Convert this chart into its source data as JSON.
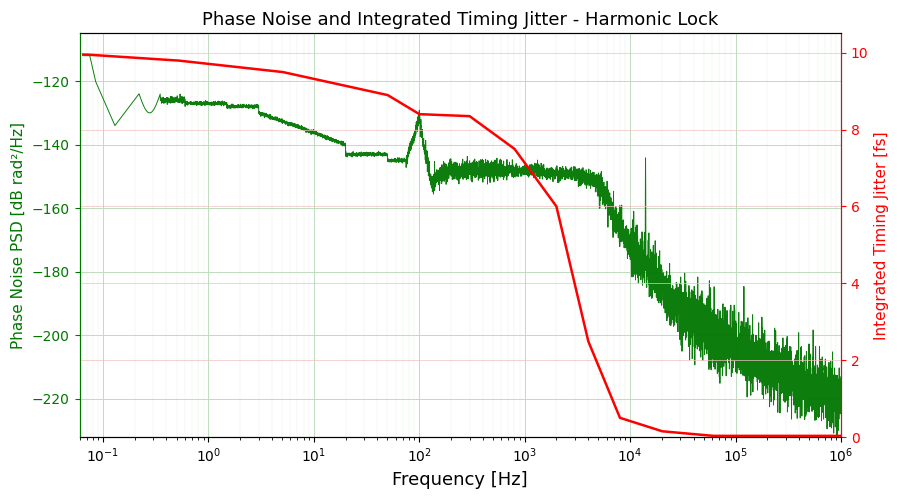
{
  "title": "Phase Noise and Integrated Timing Jitter - Harmonic Lock",
  "xlabel": "Frequency [Hz]",
  "ylabel_left": "Phase Noise PSD [dB rad²/Hz]",
  "ylabel_right": "Integrated Timing Jitter [fs]",
  "xlim": [
    0.06,
    1000000.0
  ],
  "ylim_left": [
    -232,
    -105
  ],
  "ylim_right": [
    0,
    10.5
  ],
  "color_green": "#007700",
  "color_red": "#ff0000",
  "background_color": "#ffffff",
  "yticks_left": [
    -120,
    -140,
    -160,
    -180,
    -200,
    -220
  ],
  "yticks_right": [
    0,
    2,
    4,
    6,
    8,
    10
  ],
  "xticks": [
    0.1,
    1,
    10,
    100,
    1000,
    10000,
    100000,
    1000000
  ]
}
